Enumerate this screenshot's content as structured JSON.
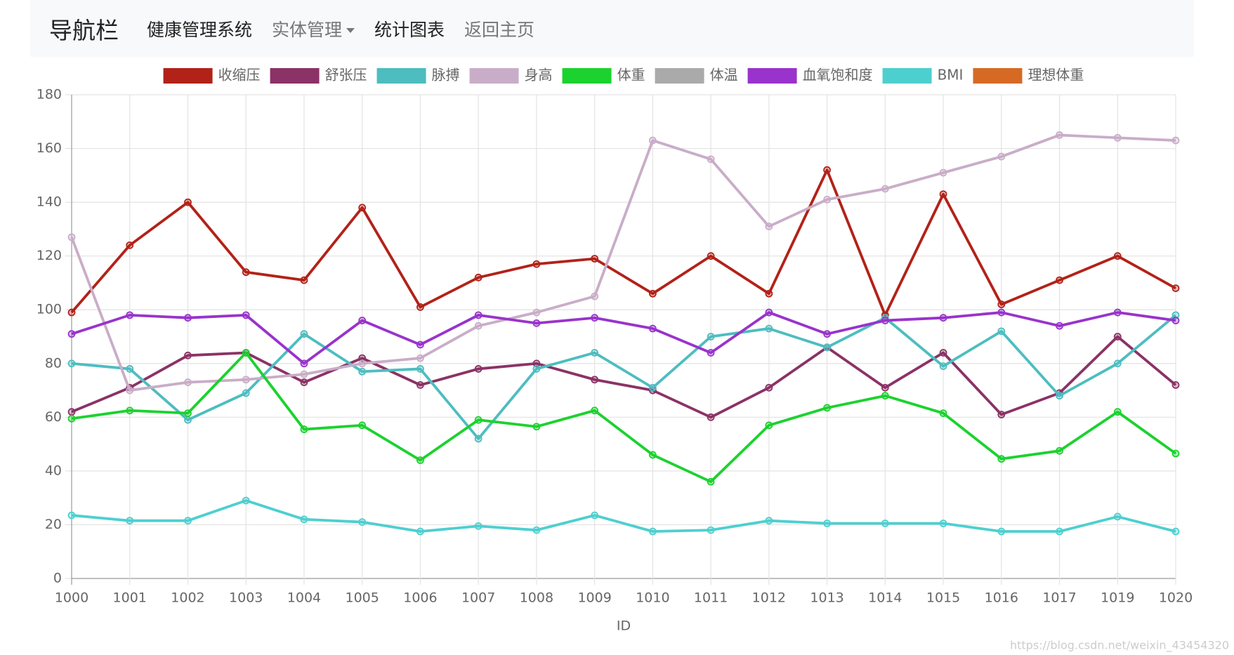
{
  "nav": {
    "brand": "导航栏",
    "items": [
      "健康管理系统",
      "实体管理",
      "统计图表",
      "返回主页"
    ]
  },
  "watermark": "https://blog.csdn.net/weixin_43454320",
  "chart_data": {
    "type": "line",
    "x_label": "ID",
    "grid": true,
    "legend": "top",
    "categories": [
      "1000",
      "1001",
      "1002",
      "1003",
      "1004",
      "1005",
      "1006",
      "1007",
      "1008",
      "1009",
      "1010",
      "1011",
      "1012",
      "1013",
      "1014",
      "1015",
      "1016",
      "1017",
      "1019",
      "1020"
    ],
    "ylim": [
      0,
      180
    ],
    "yticks": [
      0,
      20,
      40,
      60,
      80,
      100,
      120,
      140,
      160,
      180
    ],
    "series": [
      {
        "name": "收缩压",
        "color": "#b22218",
        "values": [
          99,
          124,
          140,
          114,
          111,
          138,
          101,
          112,
          117,
          119,
          106,
          120,
          106,
          152,
          98,
          143,
          102,
          111,
          120,
          108
        ]
      },
      {
        "name": "舒张压",
        "color": "#8b3266",
        "values": [
          62,
          71,
          83,
          84,
          73,
          82,
          72,
          78,
          80,
          74,
          70,
          60,
          71,
          86,
          71,
          84,
          61,
          69,
          90,
          72
        ]
      },
      {
        "name": "脉搏",
        "color": "#4dbdc0",
        "values": [
          80,
          78,
          59,
          69,
          91,
          77,
          78,
          52,
          78,
          84,
          71,
          90,
          93,
          86,
          97,
          79,
          92,
          68,
          80,
          98
        ]
      },
      {
        "name": "身高",
        "color": "#c9adc8",
        "values": [
          127,
          70,
          73,
          74,
          76,
          80,
          82,
          94,
          99,
          105,
          163,
          156,
          131,
          141,
          145,
          151,
          157,
          165,
          164,
          163
        ]
      },
      {
        "name": "体重",
        "color": "#1bd22e",
        "values": [
          59.5,
          62.5,
          61.5,
          84,
          55.5,
          57,
          44,
          59,
          56.5,
          62.5,
          46,
          36,
          57,
          63.5,
          68,
          61.5,
          44.5,
          47.5,
          62,
          46.5
        ]
      },
      {
        "name": "体温",
        "color": "#aaaaaa",
        "values": [
          null,
          null,
          null,
          null,
          null,
          null,
          null,
          null,
          null,
          null,
          null,
          null,
          null,
          null,
          null,
          null,
          null,
          null,
          null,
          null
        ]
      },
      {
        "name": "血氧饱和度",
        "color": "#9933cc",
        "values": [
          91,
          98,
          97,
          98,
          80,
          96,
          87,
          98,
          95,
          97,
          93,
          84,
          99,
          91,
          96,
          97,
          99,
          94,
          99,
          96
        ]
      },
      {
        "name": "BMI",
        "color": "#4dcfd0",
        "values": [
          23.5,
          21.5,
          21.5,
          29,
          22,
          21,
          17.5,
          19.5,
          18,
          23.5,
          17.5,
          18,
          21.5,
          20.5,
          20.5,
          20.5,
          17.5,
          17.5,
          23,
          17.5
        ]
      },
      {
        "name": "理想体重",
        "color": "#d66a24",
        "values": [
          null,
          null,
          null,
          null,
          null,
          null,
          null,
          null,
          null,
          null,
          null,
          null,
          null,
          null,
          null,
          null,
          null,
          null,
          null,
          null
        ]
      }
    ]
  }
}
